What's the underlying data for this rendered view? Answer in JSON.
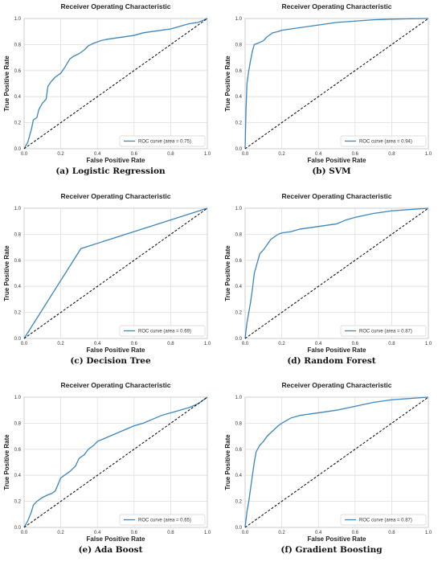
{
  "chart_data": [
    {
      "type": "line",
      "panel_label": "(a)",
      "caption": "Logistic Regression",
      "title": "Receiver Operating Characteristic",
      "xlabel": "False Positive Rate",
      "ylabel": "True Positive Rate",
      "xlim": [
        0,
        1
      ],
      "ylim": [
        0,
        1
      ],
      "xticks": [
        "0.0",
        "0.2",
        "0.4",
        "0.6",
        "0.8",
        "1.0"
      ],
      "yticks": [
        "0.0",
        "0.2",
        "0.4",
        "0.6",
        "0.8",
        "1.0"
      ],
      "grid": true,
      "legend_position": "lower-right",
      "series": [
        {
          "name": "ROC curve (area = 0.75)",
          "color": "#3b86c0",
          "x": [
            0,
            0.02,
            0.04,
            0.05,
            0.07,
            0.08,
            0.1,
            0.12,
            0.13,
            0.15,
            0.17,
            0.2,
            0.22,
            0.25,
            0.27,
            0.3,
            0.33,
            0.35,
            0.38,
            0.4,
            0.42,
            0.45,
            0.5,
            0.55,
            0.6,
            0.65,
            0.7,
            0.75,
            0.8,
            0.85,
            0.9,
            0.95,
            1.0
          ],
          "y": [
            0,
            0.05,
            0.15,
            0.22,
            0.24,
            0.3,
            0.35,
            0.38,
            0.48,
            0.52,
            0.55,
            0.58,
            0.62,
            0.69,
            0.71,
            0.73,
            0.76,
            0.79,
            0.81,
            0.82,
            0.83,
            0.84,
            0.85,
            0.86,
            0.87,
            0.89,
            0.9,
            0.91,
            0.92,
            0.94,
            0.96,
            0.97,
            1.0
          ]
        },
        {
          "name": "",
          "style": "dashed",
          "color": "#000000",
          "x": [
            0,
            1
          ],
          "y": [
            0,
            1
          ]
        }
      ]
    },
    {
      "type": "line",
      "panel_label": "(b)",
      "caption": "SVM",
      "title": "Receiver Operating Characteristic",
      "xlabel": "False Positive Rate",
      "ylabel": "True Positive Rate",
      "xlim": [
        0,
        1
      ],
      "ylim": [
        0,
        1
      ],
      "xticks": [
        "0.0",
        "0.2",
        "0.4",
        "0.6",
        "0.8",
        "1.0"
      ],
      "yticks": [
        "0.0",
        "0.2",
        "0.4",
        "0.6",
        "0.8",
        "1.0"
      ],
      "grid": true,
      "legend_position": "lower-right",
      "series": [
        {
          "name": "ROC curve (area = 0.94)",
          "color": "#3b86c0",
          "x": [
            0,
            0.005,
            0.01,
            0.02,
            0.03,
            0.04,
            0.05,
            0.07,
            0.1,
            0.12,
            0.15,
            0.18,
            0.2,
            0.25,
            0.3,
            0.4,
            0.5,
            0.6,
            0.7,
            0.8,
            0.9,
            1.0
          ],
          "y": [
            0,
            0.3,
            0.5,
            0.6,
            0.68,
            0.75,
            0.8,
            0.81,
            0.83,
            0.86,
            0.89,
            0.9,
            0.91,
            0.92,
            0.93,
            0.95,
            0.97,
            0.98,
            0.99,
            0.995,
            0.998,
            1.0
          ]
        },
        {
          "name": "",
          "style": "dashed",
          "color": "#000000",
          "x": [
            0,
            1
          ],
          "y": [
            0,
            1
          ]
        }
      ]
    },
    {
      "type": "line",
      "panel_label": "(c)",
      "caption": "Decision Tree",
      "title": "Receiver Operating Characteristic",
      "xlabel": "False Positive Rate",
      "ylabel": "True Positive Rate",
      "xlim": [
        0,
        1
      ],
      "ylim": [
        0,
        1
      ],
      "xticks": [
        "0.0",
        "0.2",
        "0.4",
        "0.6",
        "0.8",
        "1.0"
      ],
      "yticks": [
        "0.0",
        "0.2",
        "0.4",
        "0.6",
        "0.8",
        "1.0"
      ],
      "grid": true,
      "legend_position": "lower-right",
      "series": [
        {
          "name": "ROC curve (area = 0.69)",
          "color": "#3b86c0",
          "x": [
            0,
            0.31,
            1.0
          ],
          "y": [
            0,
            0.69,
            1.0
          ]
        },
        {
          "name": "",
          "style": "dashed",
          "color": "#000000",
          "x": [
            0,
            1
          ],
          "y": [
            0,
            1
          ]
        }
      ]
    },
    {
      "type": "line",
      "panel_label": "(d)",
      "caption": "Random Forest",
      "title": "Receiver Operating Characteristic",
      "xlabel": "False Positive Rate",
      "ylabel": "True Positive Rate",
      "xlim": [
        0,
        1
      ],
      "ylim": [
        0,
        1
      ],
      "xticks": [
        "0.0",
        "0.2",
        "0.4",
        "0.6",
        "0.8",
        "1.0"
      ],
      "yticks": [
        "0.0",
        "0.2",
        "0.4",
        "0.6",
        "0.8",
        "1.0"
      ],
      "grid": true,
      "legend_position": "lower-right",
      "series": [
        {
          "name": "ROC curve (area = 0.87)",
          "color": "#3b86c0",
          "x": [
            0,
            0.01,
            0.02,
            0.03,
            0.04,
            0.05,
            0.06,
            0.07,
            0.08,
            0.1,
            0.12,
            0.14,
            0.16,
            0.18,
            0.2,
            0.25,
            0.3,
            0.35,
            0.4,
            0.45,
            0.5,
            0.55,
            0.6,
            0.7,
            0.8,
            0.9,
            1.0
          ],
          "y": [
            0,
            0.12,
            0.2,
            0.28,
            0.38,
            0.5,
            0.55,
            0.6,
            0.65,
            0.68,
            0.72,
            0.76,
            0.78,
            0.8,
            0.81,
            0.82,
            0.84,
            0.85,
            0.86,
            0.87,
            0.88,
            0.91,
            0.93,
            0.96,
            0.98,
            0.99,
            1.0
          ]
        },
        {
          "name": "",
          "style": "dashed",
          "color": "#000000",
          "x": [
            0,
            1
          ],
          "y": [
            0,
            1
          ]
        }
      ]
    },
    {
      "type": "line",
      "panel_label": "(e)",
      "caption": "Ada Boost",
      "title": "Receiver Operating Characteristic",
      "xlabel": "False Positive Rate",
      "ylabel": "True Positive Rate",
      "xlim": [
        0,
        1
      ],
      "ylim": [
        0,
        1
      ],
      "xticks": [
        "0.0",
        "0.2",
        "0.4",
        "0.6",
        "0.8",
        "1.0"
      ],
      "yticks": [
        "0.0",
        "0.2",
        "0.4",
        "0.6",
        "0.8",
        "1.0"
      ],
      "grid": true,
      "legend_position": "lower-right",
      "series": [
        {
          "name": "ROC curve (area = 0.65)",
          "color": "#3b86c0",
          "x": [
            0,
            0.02,
            0.04,
            0.05,
            0.07,
            0.1,
            0.13,
            0.15,
            0.17,
            0.2,
            0.22,
            0.25,
            0.28,
            0.3,
            0.33,
            0.35,
            0.38,
            0.4,
            0.45,
            0.5,
            0.55,
            0.6,
            0.65,
            0.7,
            0.75,
            0.8,
            0.85,
            0.9,
            0.95,
            1.0
          ],
          "y": [
            0,
            0.05,
            0.12,
            0.17,
            0.2,
            0.23,
            0.25,
            0.26,
            0.28,
            0.38,
            0.4,
            0.43,
            0.47,
            0.53,
            0.56,
            0.6,
            0.63,
            0.66,
            0.69,
            0.72,
            0.75,
            0.78,
            0.8,
            0.83,
            0.86,
            0.88,
            0.9,
            0.92,
            0.95,
            1.0
          ]
        },
        {
          "name": "",
          "style": "dashed",
          "color": "#000000",
          "x": [
            0,
            1
          ],
          "y": [
            0,
            1
          ]
        }
      ]
    },
    {
      "type": "line",
      "panel_label": "(f)",
      "caption": "Gradient Boosting",
      "title": "Receiver Operating Characteristic",
      "xlabel": "False Positive Rate",
      "ylabel": "True Positive Rate",
      "xlim": [
        0,
        1
      ],
      "ylim": [
        0,
        1
      ],
      "xticks": [
        "0.0",
        "0.2",
        "0.4",
        "0.6",
        "0.8",
        "1.0"
      ],
      "yticks": [
        "0.0",
        "0.2",
        "0.4",
        "0.6",
        "0.8",
        "1.0"
      ],
      "grid": true,
      "legend_position": "lower-right",
      "series": [
        {
          "name": "ROC curve (area = 0.87)",
          "color": "#3b86c0",
          "x": [
            0,
            0.01,
            0.02,
            0.03,
            0.04,
            0.05,
            0.06,
            0.08,
            0.1,
            0.12,
            0.15,
            0.18,
            0.2,
            0.25,
            0.3,
            0.35,
            0.4,
            0.5,
            0.6,
            0.7,
            0.8,
            0.9,
            1.0
          ],
          "y": [
            0,
            0.12,
            0.2,
            0.3,
            0.4,
            0.5,
            0.58,
            0.63,
            0.66,
            0.7,
            0.74,
            0.78,
            0.8,
            0.84,
            0.86,
            0.87,
            0.88,
            0.9,
            0.93,
            0.96,
            0.98,
            0.99,
            1.0
          ]
        },
        {
          "name": "",
          "style": "dashed",
          "color": "#000000",
          "x": [
            0,
            1
          ],
          "y": [
            0,
            1
          ]
        }
      ]
    }
  ]
}
